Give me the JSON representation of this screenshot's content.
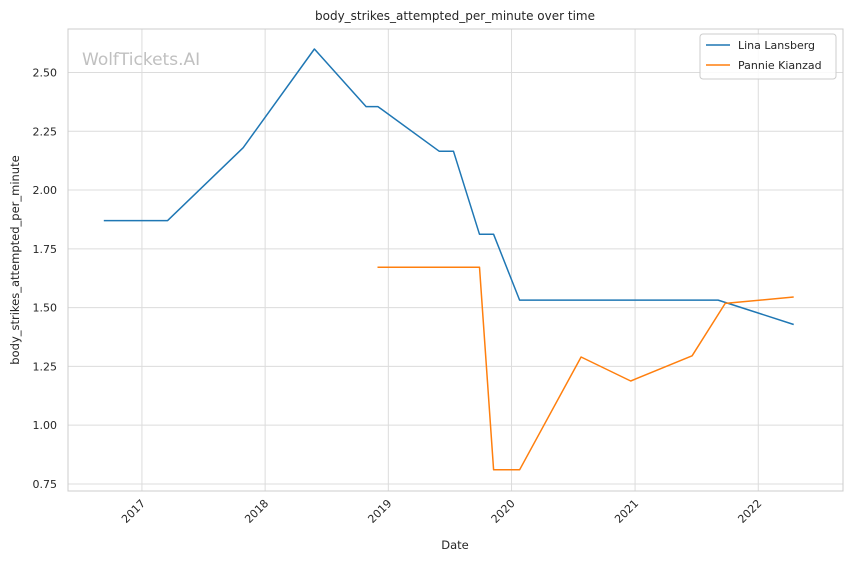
{
  "chart_data": {
    "type": "line",
    "title": "body_strikes_attempted_per_minute over time",
    "xlabel": "Date",
    "ylabel": "body_strikes_attempted_per_minute",
    "watermark": "WolfTickets.AI",
    "xlim": [
      "2016-05-27",
      "2022-09-09"
    ],
    "ylim": [
      0.72,
      2.685
    ],
    "x_ticks": [
      "2017-01-01",
      "2018-01-01",
      "2019-01-01",
      "2020-01-01",
      "2021-01-01",
      "2022-01-01"
    ],
    "x_tick_labels": [
      "2017",
      "2018",
      "2019",
      "2020",
      "2021",
      "2022"
    ],
    "y_ticks": [
      0.75,
      1.0,
      1.25,
      1.5,
      1.75,
      2.0,
      2.25,
      2.5
    ],
    "y_tick_labels": [
      "0.75",
      "1.00",
      "1.25",
      "1.50",
      "1.75",
      "2.00",
      "2.25",
      "2.50"
    ],
    "grid": true,
    "legend_position": "top-right",
    "series": [
      {
        "name": "Lina Lansberg",
        "color": "#1f77b4",
        "points": [
          {
            "x": "2016-09-10",
            "y": 1.87
          },
          {
            "x": "2017-03-18",
            "y": 1.87
          },
          {
            "x": "2017-10-28",
            "y": 2.18
          },
          {
            "x": "2018-05-27",
            "y": 2.6
          },
          {
            "x": "2018-10-27",
            "y": 2.355
          },
          {
            "x": "2018-12-01",
            "y": 2.355
          },
          {
            "x": "2019-06-01",
            "y": 2.165
          },
          {
            "x": "2019-07-13",
            "y": 2.165
          },
          {
            "x": "2019-09-28",
            "y": 1.812
          },
          {
            "x": "2019-11-09",
            "y": 1.812
          },
          {
            "x": "2020-01-25",
            "y": 1.532
          },
          {
            "x": "2021-09-04",
            "y": 1.532
          },
          {
            "x": "2022-04-16",
            "y": 1.428
          }
        ]
      },
      {
        "name": "Pannie Kianzad",
        "color": "#ff7f0e",
        "points": [
          {
            "x": "2018-11-30",
            "y": 1.672
          },
          {
            "x": "2019-09-28",
            "y": 1.672
          },
          {
            "x": "2019-11-09",
            "y": 0.81
          },
          {
            "x": "2020-01-25",
            "y": 0.81
          },
          {
            "x": "2020-07-25",
            "y": 1.29
          },
          {
            "x": "2020-12-19",
            "y": 1.188
          },
          {
            "x": "2021-06-19",
            "y": 1.295
          },
          {
            "x": "2021-09-25",
            "y": 1.518
          },
          {
            "x": "2022-04-16",
            "y": 1.545
          }
        ]
      }
    ]
  }
}
